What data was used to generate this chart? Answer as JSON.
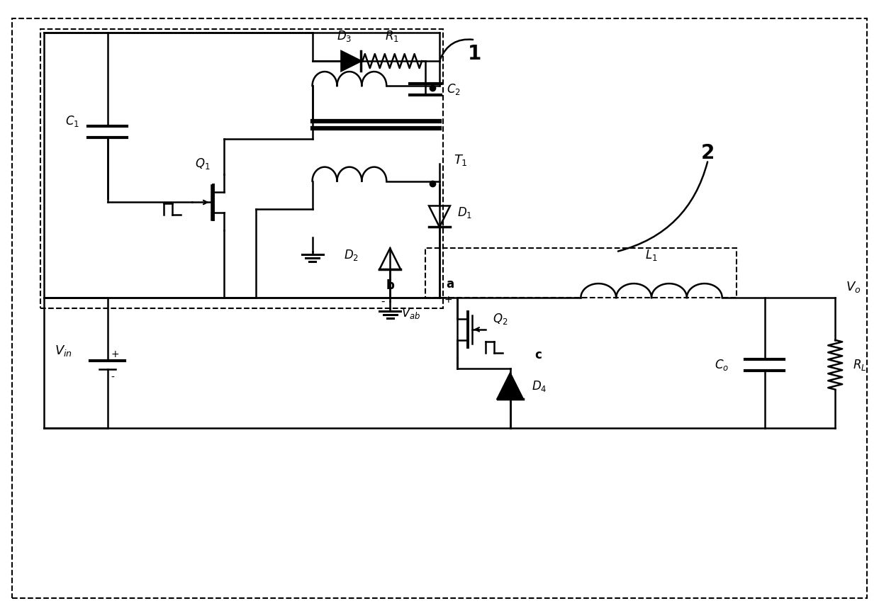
{
  "background": "#ffffff",
  "line_color": "#000000",
  "line_width": 1.8,
  "fig_width": 12.4,
  "fig_height": 8.65,
  "dpi": 100,
  "xlim": [
    0,
    124
  ],
  "ylim": [
    0,
    86.5
  ]
}
